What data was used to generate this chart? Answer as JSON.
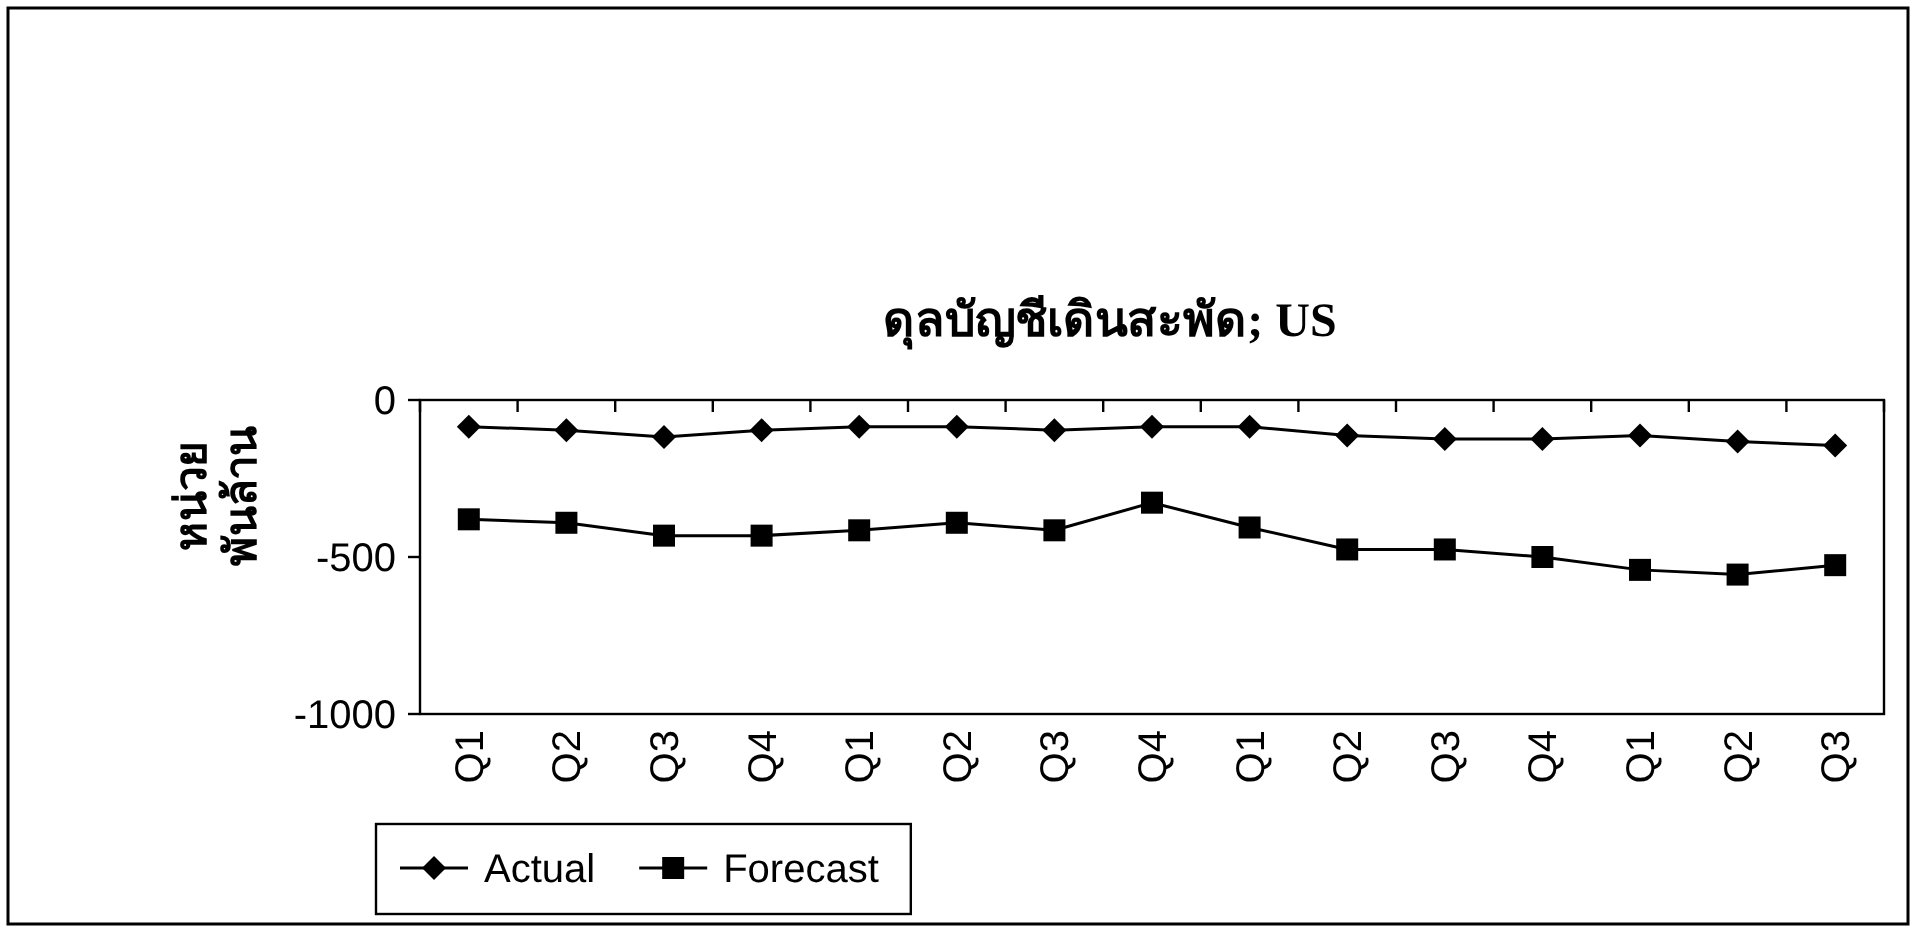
{
  "chart_data": {
    "type": "line",
    "title": "ดุลบัญชีเดินสะพัด; US",
    "ylabel": "หน่วย\nพันล้าน",
    "categories": [
      "Q1",
      "Q2",
      "Q3",
      "Q4",
      "Q1",
      "Q2",
      "Q3",
      "Q4",
      "Q1",
      "Q2",
      "Q3",
      "Q4",
      "Q1",
      "Q2",
      "Q3"
    ],
    "series": [
      {
        "name": "Actual",
        "color": "#000000",
        "marker": "diamond",
        "values": [
          -85,
          -96,
          -118,
          -96,
          -85,
          -85,
          -96,
          -85,
          -85,
          -113,
          -124,
          -124,
          -113,
          -132,
          -145
        ]
      },
      {
        "name": "Forecast",
        "color": "#000000",
        "marker": "square",
        "values": [
          -380,
          -391,
          -432,
          -432,
          -415,
          -391,
          -415,
          -327,
          -406,
          -476,
          -476,
          -500,
          -541,
          -556,
          -526
        ]
      }
    ],
    "ylim": [
      -1000,
      0
    ],
    "yticks": [
      0,
      -500,
      -1000
    ],
    "grid": false,
    "legend": "bottom",
    "line_style": "solid"
  }
}
